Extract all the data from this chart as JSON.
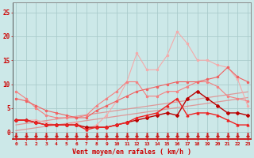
{
  "x": [
    0,
    1,
    2,
    3,
    4,
    5,
    6,
    7,
    8,
    9,
    10,
    11,
    12,
    13,
    14,
    15,
    16,
    17,
    18,
    19,
    20,
    21,
    22,
    23
  ],
  "series_pale_upper": [
    2.5,
    2.5,
    2.5,
    2.0,
    1.5,
    1.5,
    2.0,
    0.5,
    1.5,
    3.5,
    6.5,
    10.5,
    16.5,
    13.0,
    13.0,
    16.0,
    21.0,
    18.5,
    15.0,
    15.0,
    14.0,
    13.5,
    11.0,
    5.5
  ],
  "series_light_pink": [
    8.5,
    7.0,
    5.0,
    3.5,
    3.0,
    3.0,
    3.0,
    3.5,
    5.5,
    7.0,
    8.5,
    10.5,
    10.5,
    7.5,
    7.5,
    8.5,
    8.5,
    9.5,
    10.5,
    10.5,
    9.5,
    7.5,
    7.0,
    6.5
  ],
  "series_medium_pink": [
    7.0,
    6.5,
    5.5,
    4.5,
    4.0,
    3.5,
    3.0,
    3.0,
    4.5,
    5.5,
    6.5,
    7.5,
    8.5,
    9.0,
    9.5,
    10.0,
    10.5,
    10.5,
    10.5,
    11.0,
    11.5,
    13.5,
    11.5,
    10.5
  ],
  "trend_line1": [
    1.5,
    1.8,
    2.1,
    2.4,
    2.7,
    3.0,
    3.3,
    3.6,
    3.9,
    4.2,
    4.5,
    4.8,
    5.1,
    5.4,
    5.7,
    6.0,
    6.3,
    6.6,
    6.9,
    7.2,
    7.5,
    7.8,
    8.1,
    8.4
  ],
  "trend_line2": [
    0.3,
    0.6,
    0.9,
    1.2,
    1.5,
    1.8,
    2.1,
    2.4,
    2.7,
    3.0,
    3.3,
    3.6,
    3.9,
    4.2,
    4.5,
    4.8,
    5.1,
    5.4,
    5.7,
    6.0,
    6.3,
    6.6,
    6.9,
    7.2
  ],
  "series_dark_red_diamond": [
    2.5,
    2.5,
    2.0,
    1.5,
    1.5,
    1.5,
    1.5,
    1.0,
    1.0,
    1.0,
    1.5,
    2.0,
    2.5,
    3.0,
    3.5,
    4.0,
    3.5,
    7.0,
    8.5,
    7.0,
    5.5,
    4.0,
    4.0,
    3.5
  ],
  "series_red_triangle": [
    2.5,
    2.5,
    2.0,
    1.5,
    1.5,
    1.5,
    1.5,
    0.5,
    1.0,
    1.0,
    1.5,
    2.0,
    3.0,
    3.5,
    4.0,
    5.5,
    7.0,
    3.5,
    4.0,
    4.0,
    3.5,
    2.5,
    1.5,
    1.5
  ],
  "wind_arrows_y": [
    -0.6,
    -0.6,
    -0.6,
    -0.6,
    -0.6,
    -0.6,
    -0.6,
    -0.6,
    -0.6,
    -0.6,
    -0.6,
    -0.6,
    -0.6,
    -0.6,
    -0.6,
    -0.6,
    -0.6,
    -0.6,
    -0.6,
    -0.6,
    -0.6,
    -0.6,
    -0.6,
    -0.6
  ],
  "bg_color": "#cce8e8",
  "grid_color": "#aacccc",
  "color_pale_upper": "#f4aaaa",
  "color_light_pink": "#f48080",
  "color_medium_pink": "#f06060",
  "color_trend": "#e09090",
  "color_dark_red": "#bb0000",
  "color_red": "#ee2222",
  "color_arrow": "#cc2222",
  "xlabel": "Vent moyen/en rafales ( km/h )",
  "yticks": [
    0,
    5,
    10,
    15,
    20,
    25
  ],
  "xtick_labels": [
    "0",
    "1",
    "2",
    "3",
    "4",
    "5",
    "6",
    "7",
    "8",
    "9",
    "10",
    "11",
    "12",
    "13",
    "14",
    "15",
    "16",
    "17",
    "18",
    "19",
    "20",
    "21",
    "22",
    "23"
  ],
  "ylim": [
    -1.5,
    27
  ],
  "xlim": [
    -0.3,
    23.3
  ]
}
